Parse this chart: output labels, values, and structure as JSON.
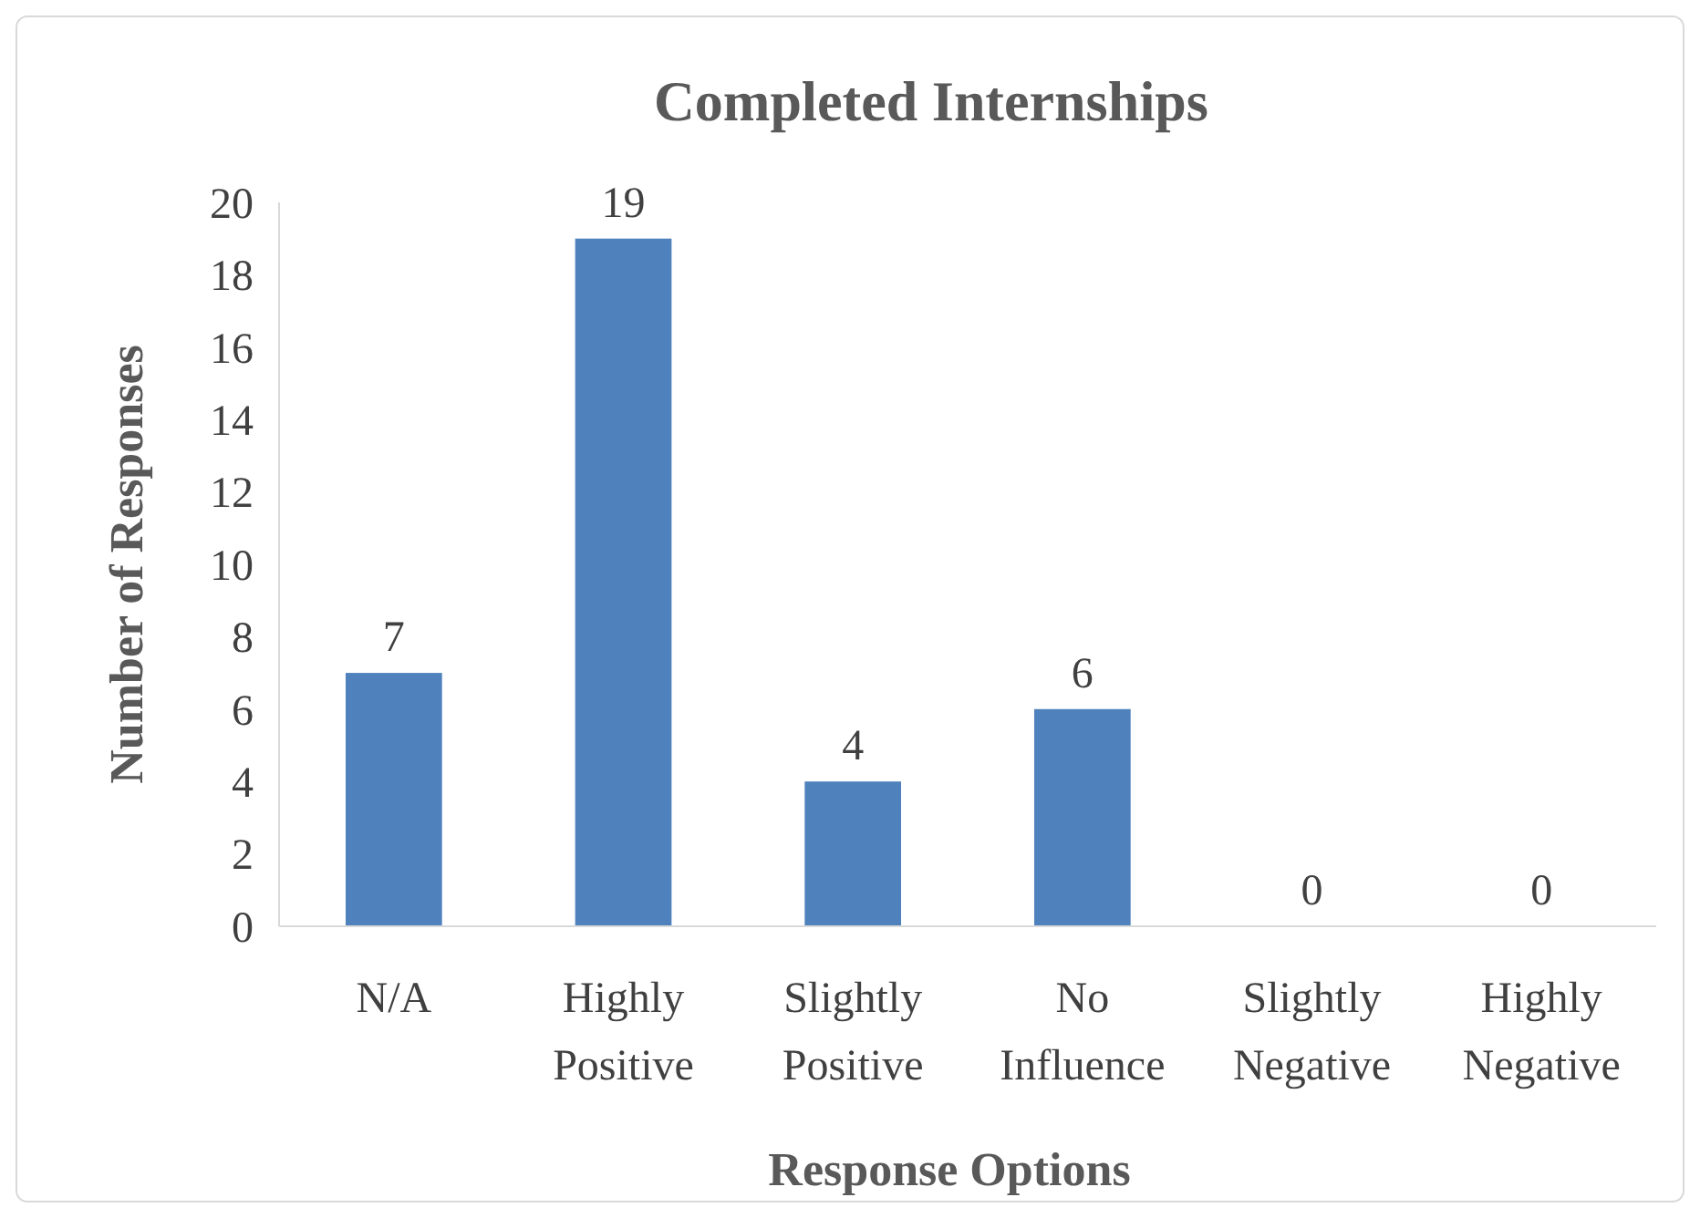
{
  "chart_data": {
    "type": "bar",
    "title": "Completed Internships",
    "xlabel": "Response Options",
    "ylabel": "Number of Responses",
    "categories": [
      "N/A",
      "Highly Positive",
      "Slightly Positive",
      "No Influence",
      "Slightly Negative",
      "Highly Negative"
    ],
    "values": [
      7,
      19,
      4,
      6,
      0,
      0
    ],
    "color": "#4f81bd",
    "ylim": [
      0,
      20
    ],
    "yticks": [
      0,
      2,
      4,
      6,
      8,
      10,
      12,
      14,
      16,
      18,
      20
    ],
    "grid": false,
    "data_labels": true
  }
}
